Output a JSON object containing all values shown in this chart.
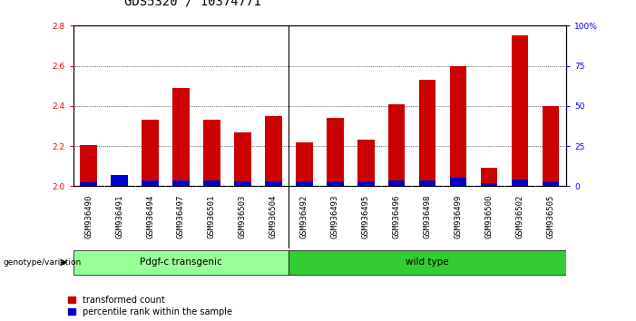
{
  "title": "GDS5320 / 10374771",
  "samples": [
    "GSM936490",
    "GSM936491",
    "GSM936494",
    "GSM936497",
    "GSM936501",
    "GSM936503",
    "GSM936504",
    "GSM936492",
    "GSM936493",
    "GSM936495",
    "GSM936496",
    "GSM936498",
    "GSM936499",
    "GSM936500",
    "GSM936502",
    "GSM936505"
  ],
  "red_heights": [
    2.205,
    2.01,
    2.33,
    2.49,
    2.33,
    2.27,
    2.35,
    2.22,
    2.34,
    2.23,
    2.41,
    2.53,
    2.6,
    2.09,
    2.75,
    2.4
  ],
  "blue_heights": [
    0.02,
    0.055,
    0.03,
    0.03,
    0.03,
    0.025,
    0.025,
    0.025,
    0.025,
    0.025,
    0.03,
    0.03,
    0.04,
    0.015,
    0.035,
    0.025
  ],
  "ylim_left": [
    2.0,
    2.8
  ],
  "ylim_right": [
    0,
    100
  ],
  "yticks_left": [
    2.0,
    2.2,
    2.4,
    2.6,
    2.8
  ],
  "yticks_right": [
    0,
    25,
    50,
    75,
    100
  ],
  "ytick_right_labels": [
    "0",
    "25",
    "50",
    "75",
    "100%"
  ],
  "group1_label": "Pdgf-c transgenic",
  "group2_label": "wild type",
  "group1_count": 7,
  "group2_count": 9,
  "genotype_label": "genotype/variation",
  "legend_red": "transformed count",
  "legend_blue": "percentile rank within the sample",
  "bar_width": 0.55,
  "red_color": "#cc0000",
  "blue_color": "#0000cc",
  "group1_color": "#99ff99",
  "group2_color": "#33cc33",
  "bg_color": "#ffffff",
  "plot_bg": "#ffffff",
  "tick_area_bg": "#cccccc",
  "title_fontsize": 10,
  "tick_fontsize": 6.5,
  "label_fontsize": 8
}
